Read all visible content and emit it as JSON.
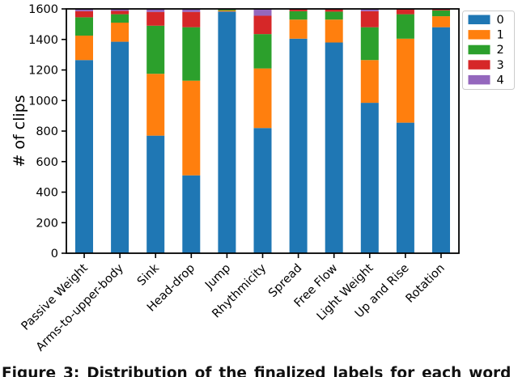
{
  "figure": {
    "caption": "Figure 3: Distribution of the finalized labels for each word"
  },
  "chart_data": {
    "type": "bar",
    "stacked": true,
    "title": "",
    "xlabel": "",
    "ylabel": "# of clips",
    "ylim": [
      0,
      1600
    ],
    "yticks": [
      0,
      200,
      400,
      600,
      800,
      1000,
      1200,
      1400,
      1600
    ],
    "grid": false,
    "legend_position": "upper right",
    "categories": [
      "Passive Weight",
      "Arms-to-upper-body",
      "Sink",
      "Head-drop",
      "Jump",
      "Rhythmicity",
      "Spread",
      "Free Flow",
      "Light Weight",
      "Up and Rise",
      "Rotation"
    ],
    "series": [
      {
        "name": "0",
        "color": "#1f77b4",
        "values": [
          1265,
          1385,
          770,
          510,
          1583,
          820,
          1405,
          1380,
          985,
          855,
          1480
        ]
      },
      {
        "name": "1",
        "color": "#ff7f0e",
        "values": [
          160,
          125,
          405,
          620,
          7,
          390,
          125,
          150,
          280,
          550,
          72
        ]
      },
      {
        "name": "2",
        "color": "#2ca02c",
        "values": [
          120,
          55,
          315,
          350,
          8,
          225,
          55,
          52,
          215,
          160,
          38
        ]
      },
      {
        "name": "3",
        "color": "#d62728",
        "values": [
          40,
          22,
          90,
          100,
          1,
          120,
          12,
          16,
          105,
          32,
          9
        ]
      },
      {
        "name": "4",
        "color": "#9467bd",
        "values": [
          15,
          13,
          20,
          20,
          1,
          45,
          3,
          2,
          15,
          3,
          1
        ]
      }
    ]
  }
}
